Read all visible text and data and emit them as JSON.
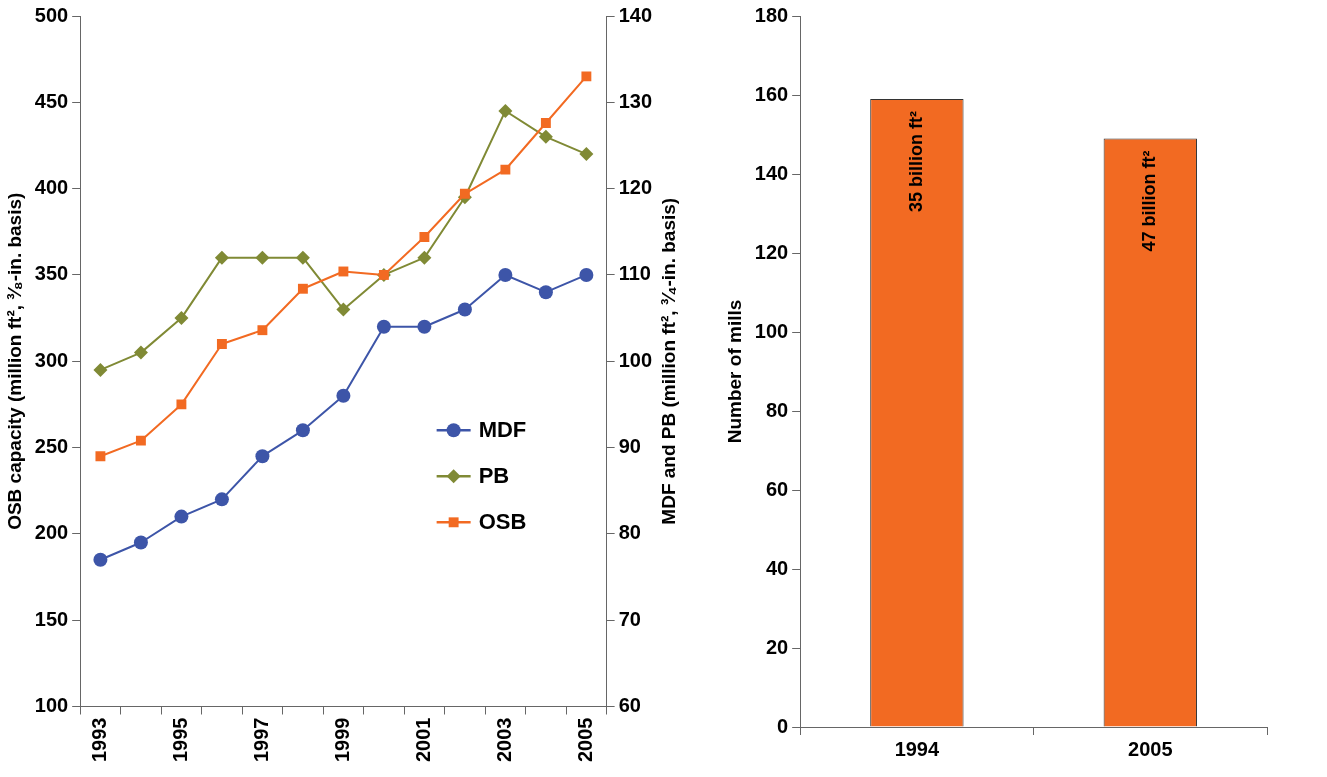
{
  "chart_data": [
    {
      "type": "line",
      "ylabel": "OSB capacity (million ft², ³⁄₈-in. basis)",
      "y2label": "MDF and PB (million ft², ³⁄₄-in. basis)",
      "categories": [
        "1993",
        null,
        "1995",
        null,
        "1997",
        null,
        "1999",
        null,
        "2001",
        null,
        "2003",
        null,
        "2005"
      ],
      "series": [
        {
          "name": "MDF",
          "color": "#3d55a8",
          "marker": "circle",
          "axis": "y2",
          "values": [
            77,
            79,
            82,
            84,
            89,
            92,
            96,
            104,
            104,
            106,
            110,
            108,
            110
          ]
        },
        {
          "name": "PB",
          "color": "#808a35",
          "marker": "diamond",
          "axis": "y2",
          "values": [
            99,
            101,
            105,
            112,
            112,
            112,
            106,
            110,
            112,
            119,
            129,
            126,
            124
          ]
        },
        {
          "name": "OSB",
          "color": "#f26a22",
          "marker": "square",
          "values": [
            245,
            254,
            275,
            310,
            318,
            342,
            352,
            350,
            372,
            397,
            411,
            438,
            465
          ]
        }
      ],
      "ylim": [
        100,
        500
      ],
      "yticks": [
        100,
        150,
        200,
        250,
        300,
        350,
        400,
        450,
        500
      ],
      "y2lim": [
        60,
        140
      ],
      "y2ticks": [
        60,
        70,
        80,
        90,
        100,
        110,
        120,
        130,
        140
      ],
      "grid": false,
      "legend": "right",
      "line_style": "solid"
    },
    {
      "type": "bar",
      "ylabel": "Number of mills",
      "categories": [
        "1994",
        "2005"
      ],
      "values": [
        159,
        149
      ],
      "color": "#f26a22",
      "annotations": [
        "35 billion ft²",
        "47 billion ft²"
      ],
      "ylim": [
        0,
        180
      ],
      "yticks": [
        0,
        20,
        40,
        60,
        80,
        100,
        120,
        140,
        160,
        180
      ],
      "grid": false,
      "legend": false
    }
  ]
}
